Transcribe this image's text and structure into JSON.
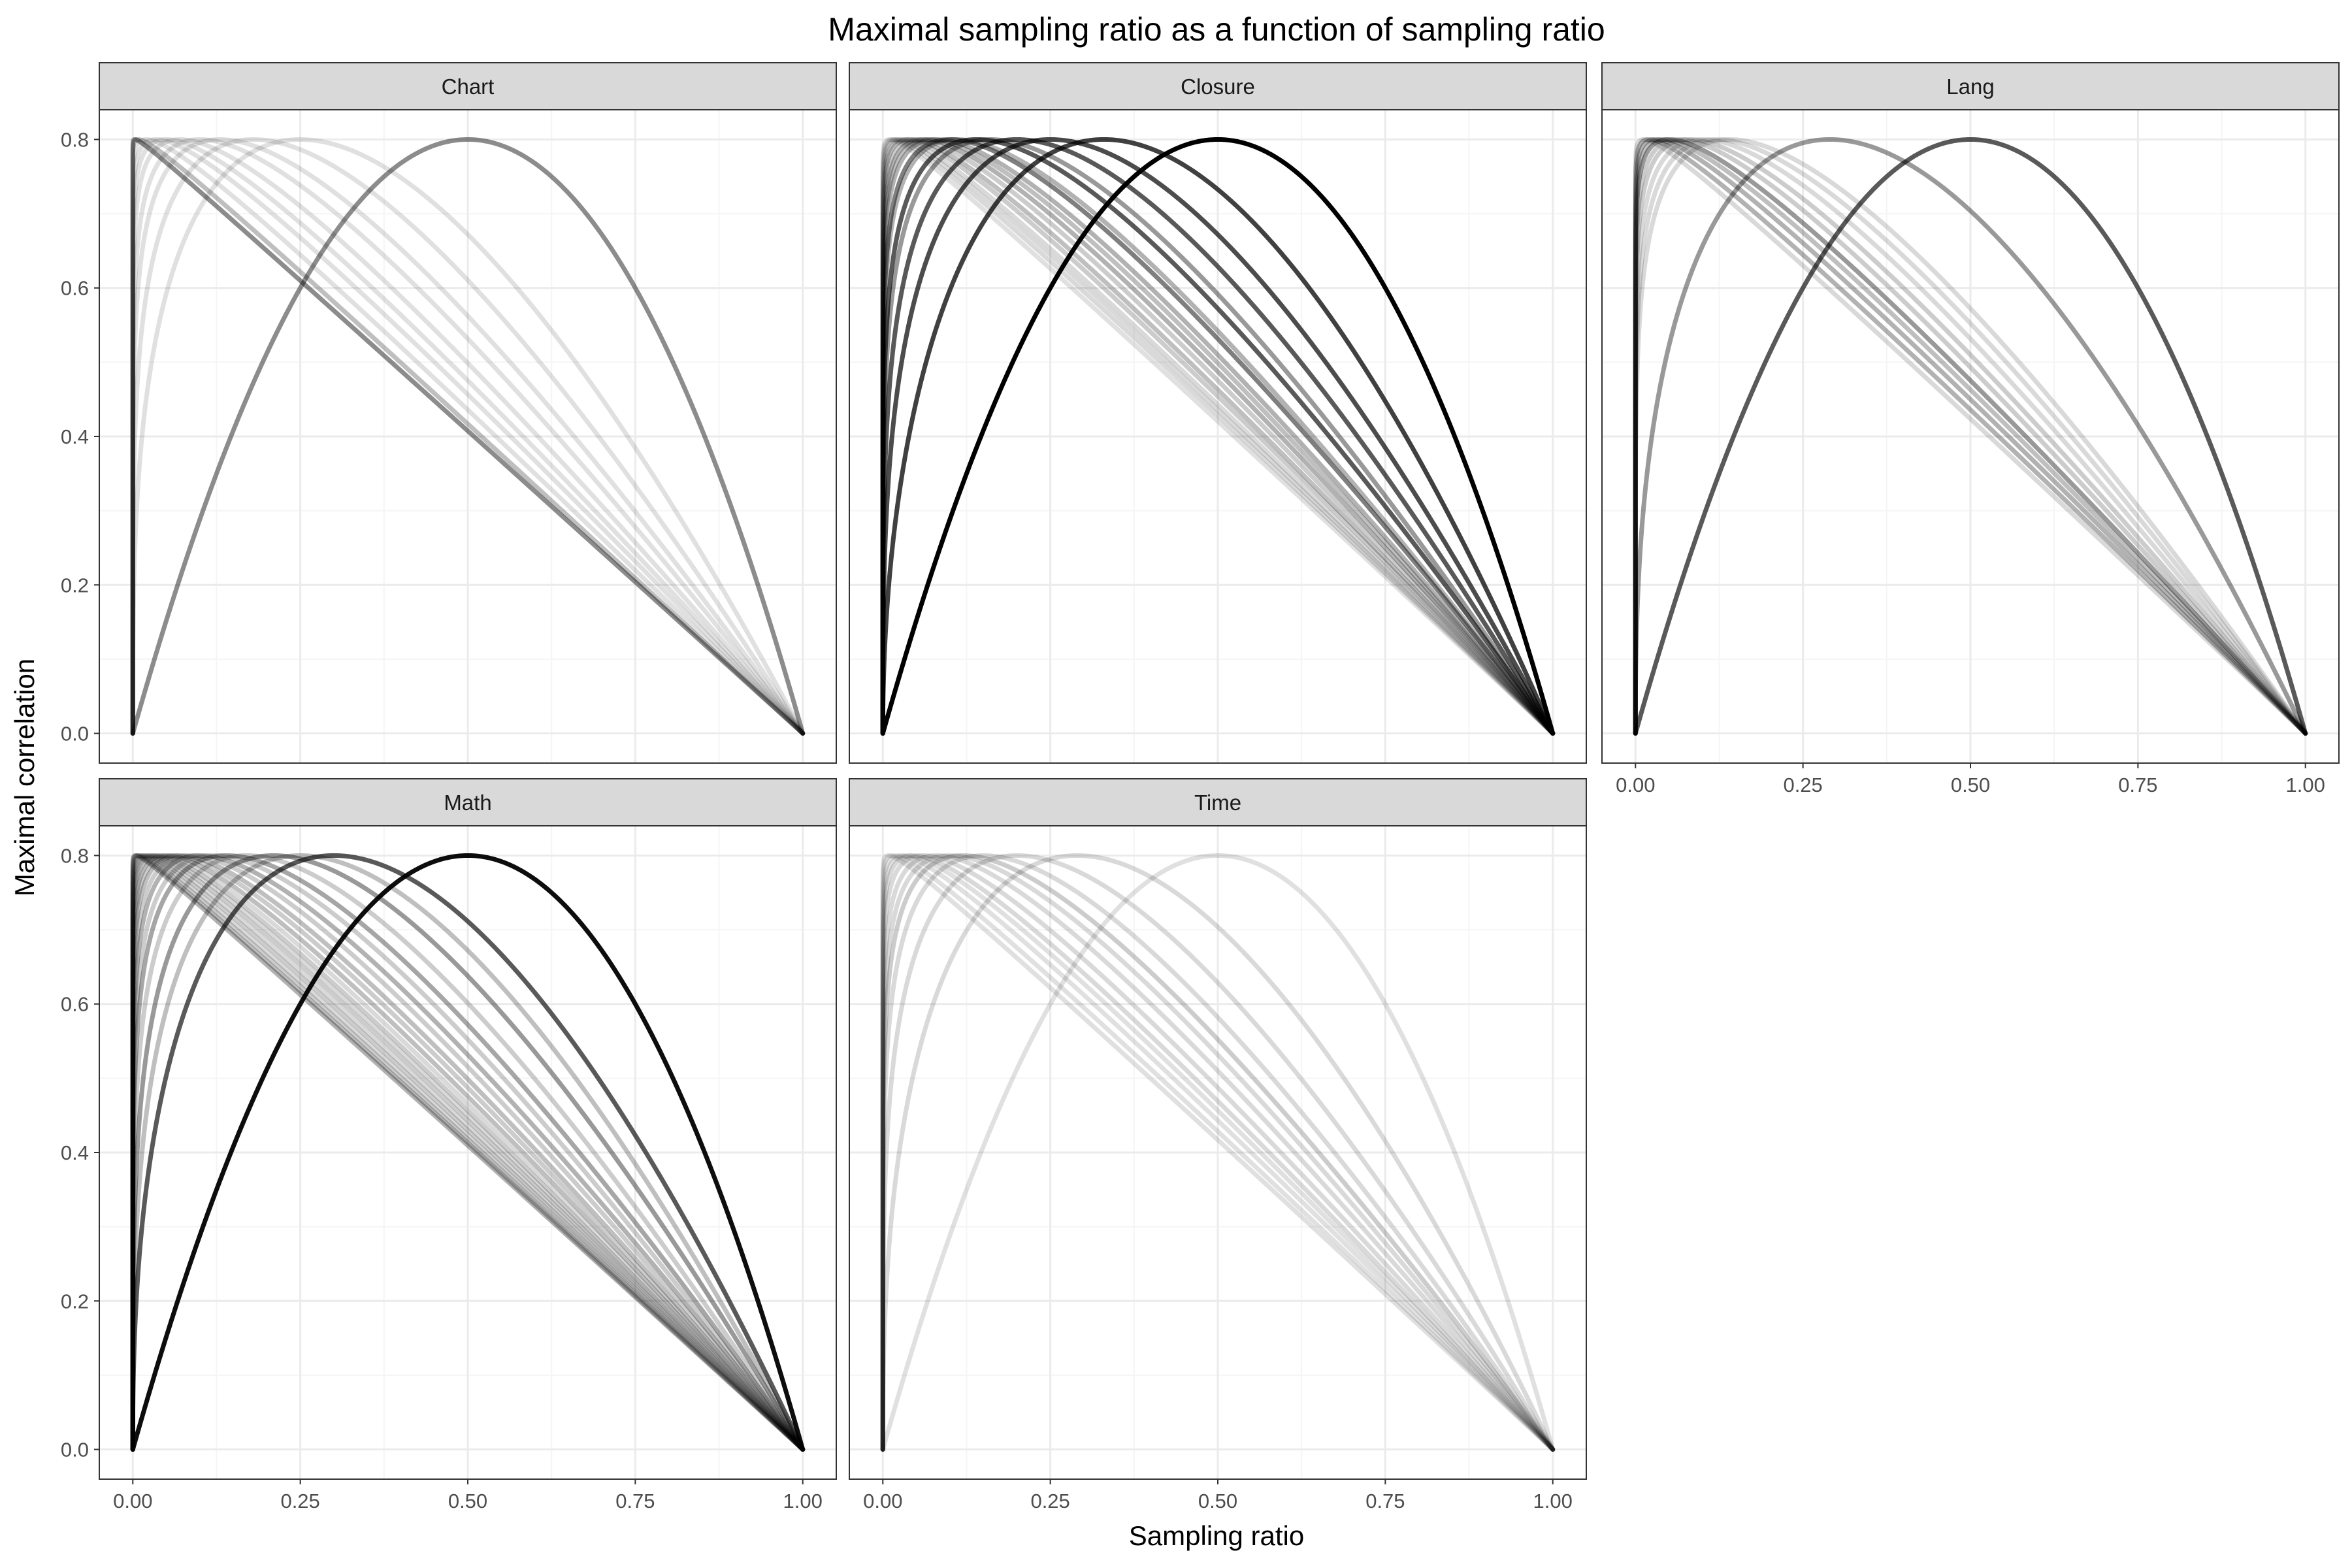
{
  "title": "Maximal sampling ratio as a function of sampling ratio",
  "xlabel": "Sampling ratio",
  "ylabel": "Maximal correlation",
  "x_ticks": [
    "0.00",
    "0.25",
    "0.50",
    "0.75",
    "1.00"
  ],
  "x_tick_values": [
    0,
    0.25,
    0.5,
    0.75,
    1.0
  ],
  "y_ticks": [
    "0.0",
    "0.2",
    "0.4",
    "0.6",
    "0.8"
  ],
  "y_tick_values": [
    0,
    0.2,
    0.4,
    0.6,
    0.8
  ],
  "colors": {
    "line": "#000000",
    "strip_fill": "#d9d9d9",
    "grid_major": "#ebebeb",
    "grid_minor": "#f5f5f5",
    "border": "#333333"
  },
  "chart_data": {
    "type": "line",
    "title": "Maximal sampling ratio as a function of sampling ratio",
    "xlabel": "Sampling ratio",
    "ylabel": "Maximal correlation",
    "xlim": [
      0,
      1
    ],
    "ylim": [
      0,
      0.8
    ],
    "grid": true,
    "facets": [
      "Chart",
      "Closure",
      "Lang",
      "Math",
      "Time"
    ],
    "curve_form": "y = 0.8 * (x/p)^(p/(1-p)) * ((1-x)/(1-p)); p = x at which y peaks at 0.8",
    "panels": [
      {
        "facet": "Chart",
        "series": [
          {
            "peak_x": 0.5,
            "opacity": 0.45
          },
          {
            "peak_x": 0.25,
            "opacity": 0.12
          },
          {
            "peak_x": 0.18,
            "opacity": 0.12
          },
          {
            "peak_x": 0.13,
            "opacity": 0.12
          },
          {
            "peak_x": 0.1,
            "opacity": 0.12
          },
          {
            "peak_x": 0.07,
            "opacity": 0.12
          },
          {
            "peak_x": 0.05,
            "opacity": 0.12
          },
          {
            "peak_x": 0.035,
            "opacity": 0.12
          },
          {
            "peak_x": 0.02,
            "opacity": 0.12
          },
          {
            "peak_x": 0.008,
            "opacity": 0.25
          },
          {
            "peak_x": 0.003,
            "opacity": 0.45
          }
        ]
      },
      {
        "facet": "Closure",
        "series": [
          {
            "peak_x": 0.5,
            "opacity": 1.0
          },
          {
            "peak_x": 0.33,
            "opacity": 0.75
          },
          {
            "peak_x": 0.25,
            "opacity": 0.7
          },
          {
            "peak_x": 0.2,
            "opacity": 0.65
          },
          {
            "peak_x": 0.16,
            "opacity": 0.4
          },
          {
            "peak_x": 0.14,
            "opacity": 0.65
          },
          {
            "peak_x": 0.11,
            "opacity": 0.3
          },
          {
            "peak_x": 0.1,
            "opacity": 0.5
          },
          {
            "peak_x": 0.08,
            "opacity": 0.3
          },
          {
            "peak_x": 0.07,
            "opacity": 0.25
          },
          {
            "peak_x": 0.06,
            "opacity": 0.3
          },
          {
            "peak_x": 0.05,
            "opacity": 0.2
          },
          {
            "peak_x": 0.04,
            "opacity": 0.25
          },
          {
            "peak_x": 0.033,
            "opacity": 0.2
          },
          {
            "peak_x": 0.025,
            "opacity": 0.15
          },
          {
            "peak_x": 0.02,
            "opacity": 0.15
          },
          {
            "peak_x": 0.015,
            "opacity": 0.15
          },
          {
            "peak_x": 0.01,
            "opacity": 0.12
          }
        ]
      },
      {
        "facet": "Lang",
        "series": [
          {
            "peak_x": 0.5,
            "opacity": 0.65
          },
          {
            "peak_x": 0.29,
            "opacity": 0.4
          },
          {
            "peak_x": 0.14,
            "opacity": 0.15
          },
          {
            "peak_x": 0.12,
            "opacity": 0.15
          },
          {
            "peak_x": 0.1,
            "opacity": 0.15
          },
          {
            "peak_x": 0.08,
            "opacity": 0.2
          },
          {
            "peak_x": 0.065,
            "opacity": 0.2
          },
          {
            "peak_x": 0.05,
            "opacity": 0.4
          },
          {
            "peak_x": 0.04,
            "opacity": 0.25
          },
          {
            "peak_x": 0.03,
            "opacity": 0.3
          },
          {
            "peak_x": 0.02,
            "opacity": 0.3
          },
          {
            "peak_x": 0.012,
            "opacity": 0.15
          }
        ]
      },
      {
        "facet": "Math",
        "series": [
          {
            "peak_x": 0.5,
            "opacity": 0.95
          },
          {
            "peak_x": 0.3,
            "opacity": 0.65
          },
          {
            "peak_x": 0.25,
            "opacity": 0.25
          },
          {
            "peak_x": 0.21,
            "opacity": 0.4
          },
          {
            "peak_x": 0.17,
            "opacity": 0.2
          },
          {
            "peak_x": 0.14,
            "opacity": 0.35
          },
          {
            "peak_x": 0.12,
            "opacity": 0.2
          },
          {
            "peak_x": 0.1,
            "opacity": 0.3
          },
          {
            "peak_x": 0.085,
            "opacity": 0.2
          },
          {
            "peak_x": 0.07,
            "opacity": 0.25
          },
          {
            "peak_x": 0.06,
            "opacity": 0.2
          },
          {
            "peak_x": 0.05,
            "opacity": 0.25
          },
          {
            "peak_x": 0.042,
            "opacity": 0.15
          },
          {
            "peak_x": 0.035,
            "opacity": 0.2
          },
          {
            "peak_x": 0.03,
            "opacity": 0.15
          },
          {
            "peak_x": 0.025,
            "opacity": 0.2
          },
          {
            "peak_x": 0.02,
            "opacity": 0.15
          },
          {
            "peak_x": 0.016,
            "opacity": 0.2
          },
          {
            "peak_x": 0.012,
            "opacity": 0.15
          },
          {
            "peak_x": 0.009,
            "opacity": 0.2
          },
          {
            "peak_x": 0.006,
            "opacity": 0.25
          },
          {
            "peak_x": 0.004,
            "opacity": 0.3
          }
        ]
      },
      {
        "facet": "Time",
        "series": [
          {
            "peak_x": 0.5,
            "opacity": 0.12
          },
          {
            "peak_x": 0.29,
            "opacity": 0.15
          },
          {
            "peak_x": 0.2,
            "opacity": 0.15
          },
          {
            "peak_x": 0.15,
            "opacity": 0.15
          },
          {
            "peak_x": 0.12,
            "opacity": 0.2
          },
          {
            "peak_x": 0.1,
            "opacity": 0.15
          },
          {
            "peak_x": 0.08,
            "opacity": 0.15
          },
          {
            "peak_x": 0.06,
            "opacity": 0.15
          },
          {
            "peak_x": 0.045,
            "opacity": 0.15
          },
          {
            "peak_x": 0.035,
            "opacity": 0.12
          },
          {
            "peak_x": 0.025,
            "opacity": 0.12
          },
          {
            "peak_x": 0.015,
            "opacity": 0.12
          },
          {
            "peak_x": 0.008,
            "opacity": 0.12
          }
        ]
      }
    ]
  }
}
